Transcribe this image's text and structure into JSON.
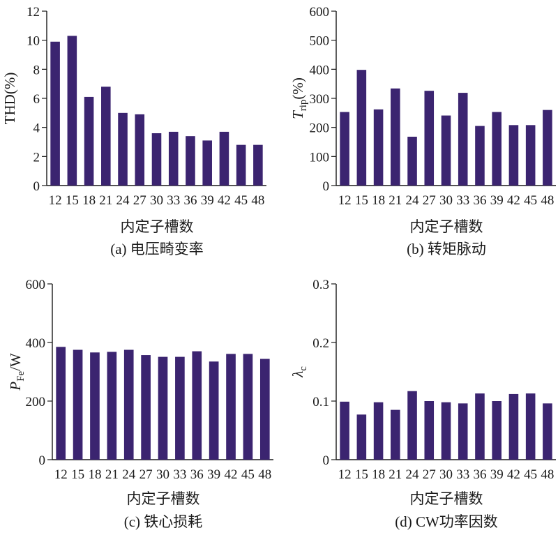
{
  "colors": {
    "bar": "#3b2470",
    "axis": "#1a1a1a",
    "text": "#1a1a1a"
  },
  "chart_data": [
    {
      "type": "bar",
      "caption": "(a) 电压畸变率",
      "xlabel": "内定子槽数",
      "ylabel": "THD(%)",
      "ylabel_parts": {
        "main": "THD(%)",
        "sub": "",
        "rest": ""
      },
      "ylim": [
        0,
        12
      ],
      "yticks": [
        0,
        2,
        4,
        6,
        8,
        10,
        12
      ],
      "ytick_labels": [
        "0",
        "2",
        "4",
        "6",
        "8",
        "10",
        "12"
      ],
      "categories": [
        "12",
        "15",
        "18",
        "21",
        "24",
        "27",
        "30",
        "33",
        "36",
        "39",
        "42",
        "45",
        "48"
      ],
      "values": [
        9.9,
        10.3,
        6.1,
        6.8,
        5.0,
        4.9,
        3.6,
        3.7,
        3.4,
        3.1,
        3.7,
        2.8,
        2.8
      ]
    },
    {
      "type": "bar",
      "caption": "(b) 转矩脉动",
      "xlabel": "内定子槽数",
      "ylabel": "Trip(%)",
      "ylabel_parts": {
        "main": "T",
        "sub": "rip",
        "rest": "(%)"
      },
      "ylim": [
        0,
        600
      ],
      "yticks": [
        0,
        100,
        200,
        300,
        400,
        500,
        600
      ],
      "ytick_labels": [
        "0",
        "100",
        "200",
        "300",
        "400",
        "500",
        "600"
      ],
      "categories": [
        "12",
        "15",
        "18",
        "21",
        "24",
        "27",
        "30",
        "33",
        "36",
        "39",
        "42",
        "45",
        "48"
      ],
      "values": [
        253,
        398,
        262,
        334,
        168,
        326,
        241,
        319,
        205,
        253,
        208,
        208,
        260
      ]
    },
    {
      "type": "bar",
      "caption": "(c) 铁心损耗",
      "xlabel": "内定子槽数",
      "ylabel": "PFe/W",
      "ylabel_parts": {
        "main": "P",
        "sub": "Fe",
        "rest": "/W"
      },
      "ylim": [
        0,
        600
      ],
      "yticks": [
        0,
        200,
        400,
        600
      ],
      "ytick_labels": [
        "0",
        "200",
        "400",
        "600"
      ],
      "categories": [
        "12",
        "15",
        "18",
        "21",
        "24",
        "27",
        "30",
        "33",
        "36",
        "39",
        "42",
        "45",
        "48"
      ],
      "values": [
        385,
        375,
        366,
        368,
        375,
        357,
        351,
        351,
        370,
        335,
        361,
        361,
        344
      ]
    },
    {
      "type": "bar",
      "caption": "(d) CW功率因数",
      "xlabel": "内定子槽数",
      "ylabel": "λc",
      "ylabel_parts": {
        "main": "λ",
        "sub": "c",
        "rest": ""
      },
      "ylim": [
        0,
        0.3
      ],
      "yticks": [
        0,
        0.1,
        0.2,
        0.3
      ],
      "ytick_labels": [
        "0",
        "0.1",
        "0.2",
        "0.3"
      ],
      "categories": [
        "12",
        "15",
        "18",
        "21",
        "24",
        "27",
        "30",
        "33",
        "36",
        "39",
        "42",
        "45",
        "48"
      ],
      "values": [
        0.099,
        0.077,
        0.098,
        0.085,
        0.117,
        0.1,
        0.098,
        0.096,
        0.113,
        0.1,
        0.112,
        0.113,
        0.096
      ]
    }
  ]
}
